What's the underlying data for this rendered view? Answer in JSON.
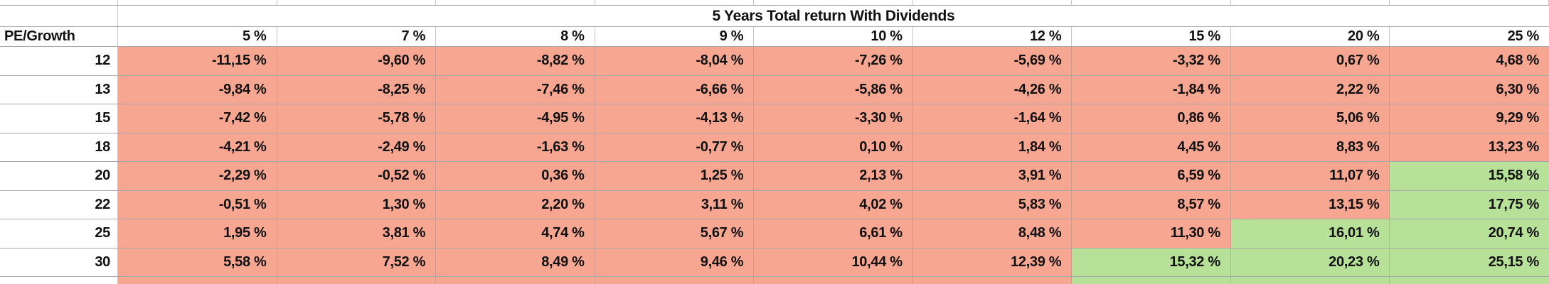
{
  "title": "5 Years Total return With Dividends",
  "table": {
    "corner_header": "PE/Growth",
    "column_headers": [
      "5 %",
      "7 %",
      "8 %",
      "9 %",
      "10 %",
      "12 %",
      "15 %",
      "20 %",
      "25 %"
    ],
    "rows": [
      {
        "pe": "12",
        "values": [
          "-11,15 %",
          "-9,60 %",
          "-8,82 %",
          "-8,04 %",
          "-7,26 %",
          "-5,69 %",
          "-3,32 %",
          "0,67 %",
          "4,68 %"
        ],
        "fills": [
          "red",
          "red",
          "red",
          "red",
          "red",
          "red",
          "red",
          "red",
          "red"
        ]
      },
      {
        "pe": "13",
        "values": [
          "-9,84 %",
          "-8,25 %",
          "-7,46 %",
          "-6,66 %",
          "-5,86 %",
          "-4,26 %",
          "-1,84 %",
          "2,22 %",
          "6,30 %"
        ],
        "fills": [
          "red",
          "red",
          "red",
          "red",
          "red",
          "red",
          "red",
          "red",
          "red"
        ]
      },
      {
        "pe": "15",
        "values": [
          "-7,42 %",
          "-5,78 %",
          "-4,95 %",
          "-4,13 %",
          "-3,30 %",
          "-1,64 %",
          "0,86 %",
          "5,06 %",
          "9,29 %"
        ],
        "fills": [
          "red",
          "red",
          "red",
          "red",
          "red",
          "red",
          "red",
          "red",
          "red"
        ]
      },
      {
        "pe": "18",
        "values": [
          "-4,21 %",
          "-2,49 %",
          "-1,63 %",
          "-0,77 %",
          "0,10 %",
          "1,84 %",
          "4,45 %",
          "8,83 %",
          "13,23 %"
        ],
        "fills": [
          "red",
          "red",
          "red",
          "red",
          "red",
          "red",
          "red",
          "red",
          "red"
        ]
      },
      {
        "pe": "20",
        "values": [
          "-2,29 %",
          "-0,52 %",
          "0,36 %",
          "1,25 %",
          "2,13 %",
          "3,91 %",
          "6,59 %",
          "11,07 %",
          "15,58 %"
        ],
        "fills": [
          "red",
          "red",
          "red",
          "red",
          "red",
          "red",
          "red",
          "red",
          "green"
        ]
      },
      {
        "pe": "22",
        "values": [
          "-0,51 %",
          "1,30 %",
          "2,20 %",
          "3,11 %",
          "4,02 %",
          "5,83 %",
          "8,57 %",
          "13,15 %",
          "17,75 %"
        ],
        "fills": [
          "red",
          "red",
          "red",
          "red",
          "red",
          "red",
          "red",
          "red",
          "green"
        ]
      },
      {
        "pe": "25",
        "values": [
          "1,95 %",
          "3,81 %",
          "4,74 %",
          "5,67 %",
          "6,61 %",
          "8,48 %",
          "11,30 %",
          "16,01 %",
          "20,74 %"
        ],
        "fills": [
          "red",
          "red",
          "red",
          "red",
          "red",
          "red",
          "red",
          "green",
          "green"
        ]
      },
      {
        "pe": "30",
        "values": [
          "5,58 %",
          "7,52 %",
          "8,49 %",
          "9,46 %",
          "10,44 %",
          "12,39 %",
          "15,32 %",
          "20,23 %",
          "25,15 %"
        ],
        "fills": [
          "red",
          "red",
          "red",
          "red",
          "red",
          "red",
          "green",
          "green",
          "green"
        ]
      }
    ]
  },
  "colors": {
    "negative_fill": "#f7a692",
    "positive_fill": "#b7e098",
    "gridline": "#c6c6c6",
    "row_border": "#a8a8a8",
    "text": "#111111"
  }
}
